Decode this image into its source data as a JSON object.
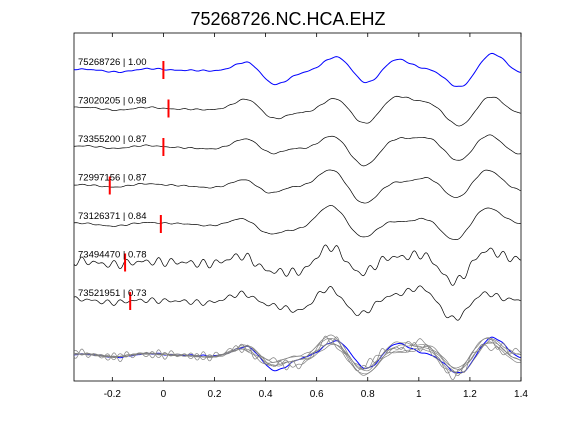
{
  "chart_data": {
    "type": "line",
    "title": "75268726.NC.HCA.EHZ",
    "xlabel": "",
    "ylabel": "",
    "xlim": [
      -0.35,
      1.4
    ],
    "xticks": [
      -0.2,
      0,
      0.2,
      0.4,
      0.6,
      0.8,
      1,
      1.2,
      1.4
    ],
    "xtick_labels": [
      "-0.2",
      "0",
      "0.2",
      "0.4",
      "0.6",
      "0.8",
      "1",
      "1.2",
      "1.4"
    ],
    "grid": false,
    "colors": {
      "reference": "#0000ff",
      "trace": "#000000",
      "pick": "#ff0000",
      "overlay": "#808080"
    },
    "traces": [
      {
        "label": "75268726 | 1.00",
        "event_id": "75268726",
        "correlation": 1.0,
        "pick_time": 0.0,
        "reference": true
      },
      {
        "label": "73020205 | 0.98",
        "event_id": "73020205",
        "correlation": 0.98,
        "pick_time": 0.02,
        "reference": false
      },
      {
        "label": "73355200 | 0.87",
        "event_id": "73355200",
        "correlation": 0.87,
        "pick_time": 0.0,
        "reference": false
      },
      {
        "label": "72997156 | 0.87",
        "event_id": "72997156",
        "correlation": 0.87,
        "pick_time": -0.21,
        "reference": false
      },
      {
        "label": "73126371 | 0.84",
        "event_id": "73126371",
        "correlation": 0.84,
        "pick_time": -0.01,
        "reference": false
      },
      {
        "label": "73494470 | 0.78",
        "event_id": "73494470",
        "correlation": 0.78,
        "pick_time": -0.15,
        "reference": false
      },
      {
        "label": "73521951 | 0.73",
        "event_id": "73521951",
        "correlation": 0.73,
        "pick_time": -0.13,
        "reference": false
      }
    ],
    "overlay": "all traces superimposed at bottom, reference in blue"
  }
}
